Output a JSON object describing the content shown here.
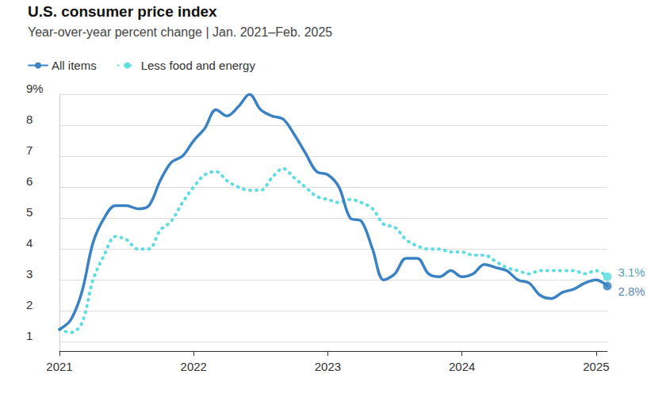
{
  "chart_data": {
    "type": "line",
    "title": "U.S. consumer price index",
    "subtitle": "Year-over-year percent change | Jan. 2021–Feb. 2025",
    "categories": [
      "2021",
      null,
      null,
      null,
      null,
      null,
      null,
      null,
      null,
      null,
      null,
      null,
      "2022",
      null,
      null,
      null,
      null,
      null,
      null,
      null,
      null,
      null,
      null,
      null,
      "2023",
      null,
      null,
      null,
      null,
      null,
      null,
      null,
      null,
      null,
      null,
      null,
      "2024",
      null,
      null,
      null,
      null,
      null,
      null,
      null,
      null,
      null,
      null,
      null,
      "2025",
      null
    ],
    "series": [
      {
        "name": "All items",
        "color": "#3b82c4",
        "line_style": "solid",
        "values": [
          1.4,
          1.7,
          2.6,
          4.2,
          5.0,
          5.4,
          5.4,
          5.3,
          5.4,
          6.2,
          6.8,
          7.0,
          7.5,
          7.9,
          8.5,
          8.3,
          8.6,
          9.0,
          8.5,
          8.3,
          8.2,
          7.7,
          7.1,
          6.5,
          6.4,
          6.0,
          5.0,
          4.9,
          4.0,
          3.0,
          3.2,
          3.7,
          3.7,
          3.2,
          3.1,
          3.3,
          3.1,
          3.2,
          3.5,
          3.4,
          3.3,
          3.0,
          2.9,
          2.5,
          2.4,
          2.6,
          2.7,
          2.9,
          3.0,
          2.8
        ]
      },
      {
        "name": "Less food and energy",
        "color": "#5fdde0",
        "line_style": "dotted",
        "values": [
          1.4,
          1.3,
          1.6,
          3.0,
          3.8,
          4.4,
          4.3,
          4.0,
          4.0,
          4.6,
          4.9,
          5.5,
          6.0,
          6.4,
          6.5,
          6.2,
          6.0,
          5.9,
          5.9,
          6.3,
          6.6,
          6.3,
          6.0,
          5.7,
          5.6,
          5.5,
          5.6,
          5.5,
          5.3,
          4.8,
          4.7,
          4.3,
          4.1,
          4.0,
          4.0,
          3.9,
          3.9,
          3.8,
          3.8,
          3.6,
          3.4,
          3.3,
          3.2,
          3.3,
          3.3,
          3.3,
          3.3,
          3.2,
          3.3,
          3.1
        ]
      }
    ],
    "annotations": [
      {
        "series": "Less food and energy",
        "text": "3.1%"
      },
      {
        "series": "All items",
        "text": "2.8%"
      }
    ],
    "ylim": [
      0.7,
      9
    ],
    "yticks": [
      1,
      2,
      3,
      4,
      5,
      6,
      7,
      8,
      {
        "value": 9,
        "label": "9%"
      }
    ],
    "grid": true,
    "legend": "top-left"
  }
}
